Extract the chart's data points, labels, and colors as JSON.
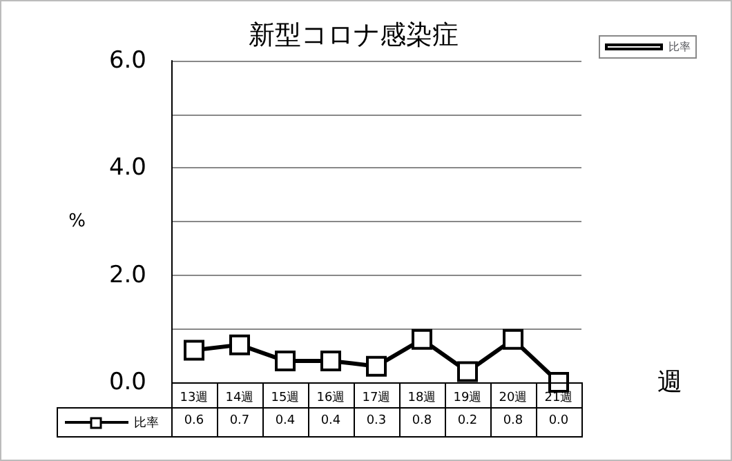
{
  "chart_data": {
    "type": "line",
    "title": "新型コロナ感染症",
    "xlabel": "週",
    "ylabel": "%",
    "categories": [
      "13週",
      "14週",
      "15週",
      "16週",
      "17週",
      "18週",
      "19週",
      "20週",
      "21週"
    ],
    "series": [
      {
        "name": "比率",
        "color": "#000000",
        "values": [
          0.6,
          0.7,
          0.4,
          0.4,
          0.3,
          0.8,
          0.2,
          0.8,
          0.0
        ],
        "value_labels": [
          "0.6",
          "0.7",
          "0.4",
          "0.4",
          "0.3",
          "0.8",
          "0.2",
          "0.8",
          "0.0"
        ]
      }
    ],
    "ylim": [
      0,
      6
    ],
    "yticks": [
      "0.0",
      {
        "value": 1,
        "label": null
      },
      "2.0",
      {
        "value": 3,
        "label": null
      },
      "4.0",
      {
        "value": 5,
        "label": null
      },
      "6.0"
    ],
    "grid": "y",
    "legend": "top right",
    "marker": "square",
    "line_style": "solid"
  }
}
